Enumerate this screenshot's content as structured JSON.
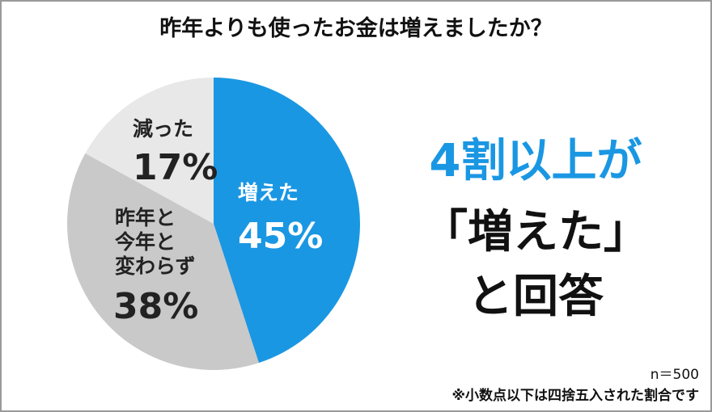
{
  "chart_data": {
    "type": "pie",
    "title": "昨年よりも使ったお金は増えましたか？",
    "categories": [
      "増えた",
      "昨年と\n今年と\n変わらず",
      "減った"
    ],
    "values": [
      45,
      38,
      17
    ],
    "value_labels": [
      "45%",
      "38%",
      "17%"
    ],
    "colors": [
      "#1a97e3",
      "#c9c9c9",
      "#e8e8e8"
    ],
    "headline": [
      "4割以上が",
      "「増えた」",
      "と回答"
    ],
    "sample_size": "n＝500",
    "footnote": "※小数点以下は四捨五入された割合です"
  }
}
